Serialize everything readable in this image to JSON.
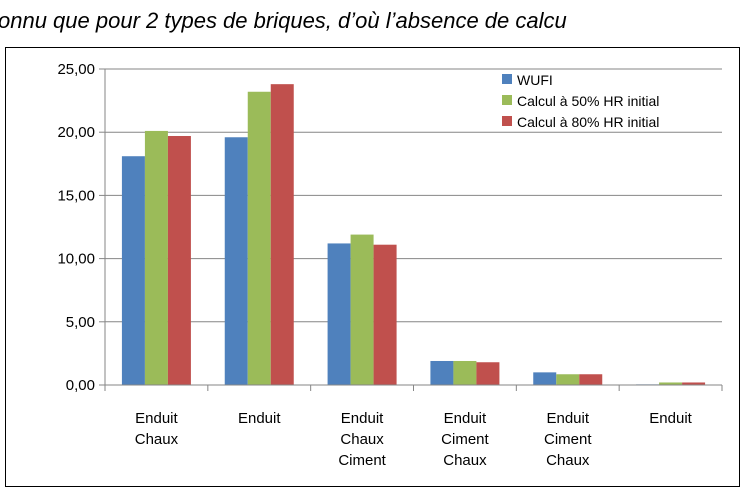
{
  "caption": "onnu que pour 2 types de briques, d’où l’absence de calcu",
  "chart_data": {
    "type": "bar",
    "categories": [
      [
        "Enduit",
        "Chaux"
      ],
      [
        "Enduit"
      ],
      [
        "Enduit",
        "Chaux",
        "Ciment"
      ],
      [
        "Enduit",
        "Ciment",
        "Chaux"
      ],
      [
        "Enduit",
        "Ciment",
        "Chaux"
      ],
      [
        "Enduit"
      ]
    ],
    "series": [
      {
        "name": "WUFI",
        "color": "#4F81BD",
        "values": [
          18.1,
          19.6,
          11.2,
          1.9,
          1.0,
          0.05
        ]
      },
      {
        "name": "Calcul à 50% HR initial",
        "color": "#9BBB59",
        "values": [
          20.1,
          23.2,
          11.9,
          1.9,
          0.85,
          0.2
        ]
      },
      {
        "name": "Calcul à 80% HR initial",
        "color": "#C0504D",
        "values": [
          19.7,
          23.8,
          11.1,
          1.8,
          0.85,
          0.2
        ]
      }
    ],
    "yticks": [
      "0,00",
      "5,00",
      "10,00",
      "15,00",
      "20,00",
      "25,00"
    ],
    "ylim": [
      0,
      25
    ],
    "grid": true,
    "legend_position": "top-right"
  }
}
